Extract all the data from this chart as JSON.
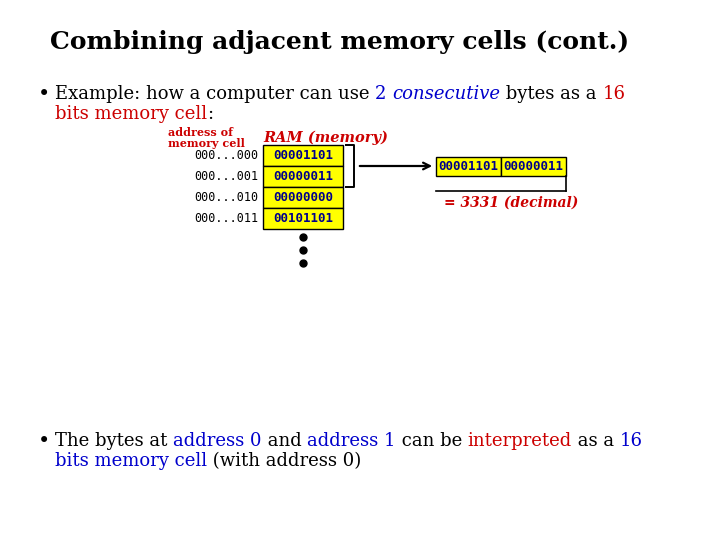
{
  "title": "Combining adjacent memory cells (cont.)",
  "bg_color": "#ffffff",
  "title_color": "#000000",
  "title_fontsize": 18,
  "yellow_bg": "#ffff00",
  "dark_blue_text": "#00008b",
  "cell_border": "#000000",
  "addr_label_color": "#cc0000",
  "ram_label_color": "#cc0000",
  "addresses": [
    "000...000",
    "000...001",
    "000...010",
    "000...011"
  ],
  "values": [
    "00001101",
    "00000011",
    "00000000",
    "00101101"
  ]
}
